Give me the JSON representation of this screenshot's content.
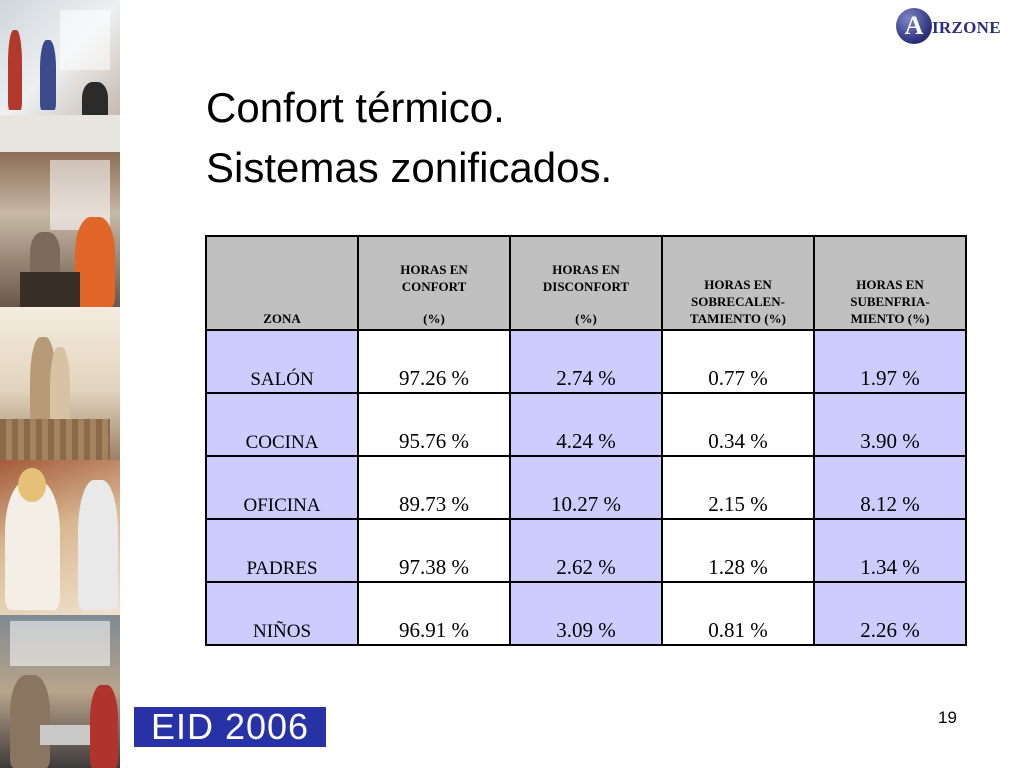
{
  "logo": {
    "initial": "A",
    "rest": "IRZONE"
  },
  "title": {
    "line1": "Confort térmico.",
    "line2": "Sistemas zonificados."
  },
  "table": {
    "headers": {
      "zona": "ZONA",
      "confort": {
        "l1": "HORAS EN",
        "l2": "CONFORT",
        "unit": "(%)"
      },
      "disconfort": {
        "l1": "HORAS EN",
        "l2": "DISCONFORT",
        "unit": "(%)"
      },
      "sobrecal": {
        "l1": "HORAS EN",
        "l2": "SOBRECALEN-",
        "l3": "TAMIENTO (%)"
      },
      "subenfria": {
        "l1": "HORAS EN",
        "l2": "SUBENFRIA-",
        "l3": "MIENTO (%)"
      }
    },
    "rows": [
      {
        "zona": "SALÓN",
        "confort": "97.26 %",
        "disconfort": "2.74 %",
        "sobrecal": "0.77 %",
        "subenfria": "1.97 %"
      },
      {
        "zona": "COCINA",
        "confort": "95.76 %",
        "disconfort": "4.24 %",
        "sobrecal": "0.34 %",
        "subenfria": "3.90 %"
      },
      {
        "zona": "OFICINA",
        "confort": "89.73 %",
        "disconfort": "10.27 %",
        "sobrecal": "2.15 %",
        "subenfria": "8.12 %"
      },
      {
        "zona": "PADRES",
        "confort": "97.38 %",
        "disconfort": "2.62 %",
        "sobrecal": "1.28 %",
        "subenfria": "1.34 %"
      },
      {
        "zona": "NIÑOS",
        "confort": "96.91 %",
        "disconfort": "3.09 %",
        "sobrecal": "0.81 %",
        "subenfria": "2.26 %"
      }
    ]
  },
  "footer": {
    "event": "EID 2006",
    "page": "19"
  },
  "colors": {
    "header_bg": "#c0c0c0",
    "lavender": "#ccccff",
    "logo_blue": "#2a2f7a",
    "eid_blue": "#2632a6"
  }
}
